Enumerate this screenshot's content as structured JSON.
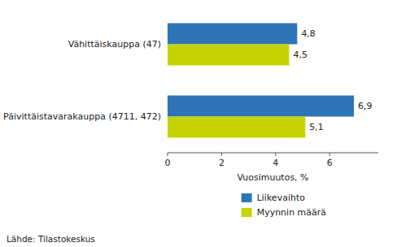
{
  "chart_data": {
    "type": "bar",
    "orientation": "horizontal",
    "categories": [
      "Päivittäistavarakauppa (4711, 472)",
      "Vähittäiskauppa (47)"
    ],
    "series": [
      {
        "name": "Liikevaihto",
        "color": "#2E75B6",
        "values": [
          6.9,
          4.8
        ],
        "value_labels": [
          "6,9",
          "4,8"
        ]
      },
      {
        "name": "Myynnin määrä",
        "color": "#C5D400",
        "values": [
          5.1,
          4.5
        ],
        "value_labels": [
          "5,1",
          "4,5"
        ]
      }
    ],
    "xlabel": "Vuosimuutos, %",
    "xlim": [
      0,
      7.8
    ],
    "xticks": [
      0,
      2,
      4,
      6
    ],
    "data_labels": true,
    "legend": "bottom",
    "grid": false,
    "annotations": [
      "Lähde: Tilastokeskus"
    ]
  }
}
